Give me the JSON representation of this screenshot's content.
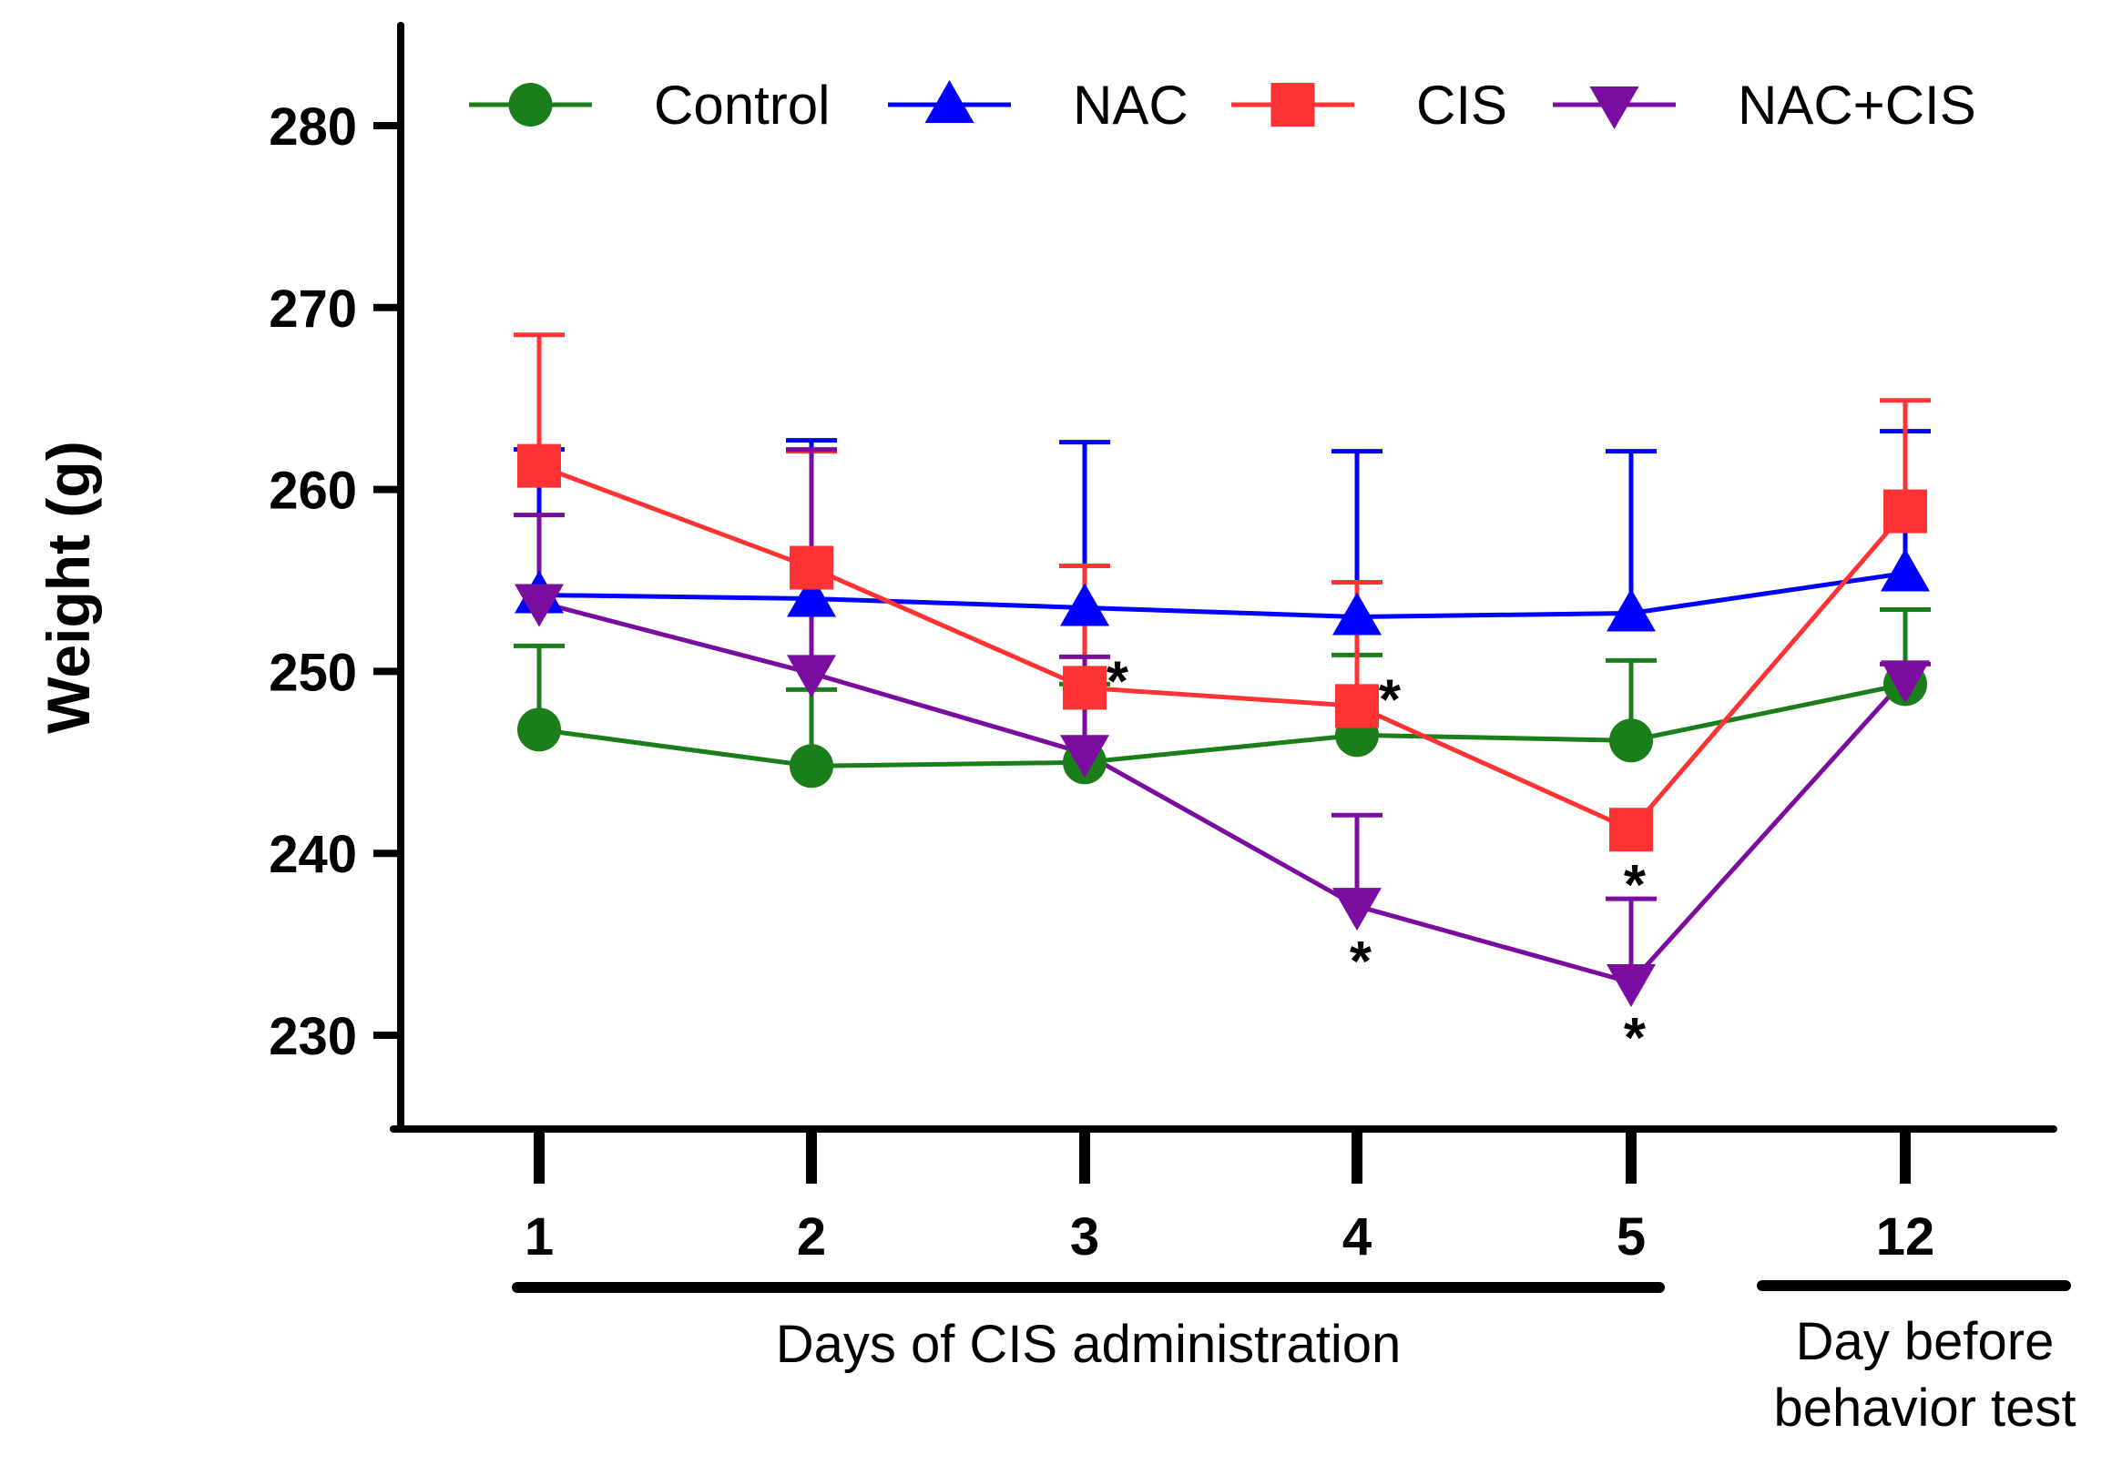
{
  "chart_data": {
    "type": "line",
    "ylabel": "Weight (g)",
    "ylim": [
      225,
      285
    ],
    "y_ticks": [
      230,
      240,
      250,
      260,
      270,
      280
    ],
    "categories": [
      "1",
      "2",
      "3",
      "4",
      "5",
      "12"
    ],
    "legend_position": "top",
    "series": [
      {
        "name": "Control",
        "color": "#1a7f1a",
        "marker": "circle",
        "values": [
          246.8,
          244.8,
          245.0,
          246.5,
          246.2,
          249.3
        ],
        "errors": [
          4.6,
          4.2,
          4.3,
          4.4,
          4.4,
          4.1
        ],
        "error_direction": "up"
      },
      {
        "name": "NAC",
        "color": "#0000ff",
        "marker": "triangle-up",
        "values": [
          254.2,
          254.0,
          253.5,
          253.0,
          253.2,
          255.4
        ],
        "errors": [
          8.0,
          8.7,
          9.1,
          9.1,
          8.9,
          7.8
        ],
        "error_direction": "up"
      },
      {
        "name": "CIS",
        "color": "#ff3333",
        "marker": "square",
        "values": [
          261.3,
          255.7,
          249.1,
          248.1,
          241.3,
          258.8
        ],
        "errors": [
          7.2,
          6.4,
          6.7,
          6.8,
          0,
          6.1
        ],
        "error_direction": "up"
      },
      {
        "name": "NAC+CIS",
        "color": "#7b0ca0",
        "marker": "triangle-down",
        "values": [
          253.8,
          249.9,
          245.5,
          237.1,
          232.9,
          249.6
        ],
        "errors": [
          4.8,
          12.3,
          5.3,
          5.0,
          4.6,
          0.8
        ],
        "error_direction": "up"
      }
    ],
    "annotations": [
      {
        "text": "*",
        "series": "CIS",
        "category": "3",
        "placement": "right"
      },
      {
        "text": "*",
        "series": "CIS",
        "category": "4",
        "placement": "right"
      },
      {
        "text": "*",
        "series": "CIS",
        "category": "5",
        "placement": "below"
      },
      {
        "text": "*",
        "series": "NAC+CIS",
        "category": "4",
        "placement": "below"
      },
      {
        "text": "*",
        "series": "NAC+CIS",
        "category": "5",
        "placement": "below"
      }
    ],
    "x_groups": [
      {
        "label_lines": [
          "Days of CIS administration"
        ],
        "from": "1",
        "to": "5"
      },
      {
        "label_lines": [
          "Day before",
          "behavior test"
        ],
        "from": "12",
        "to": "12"
      }
    ]
  }
}
